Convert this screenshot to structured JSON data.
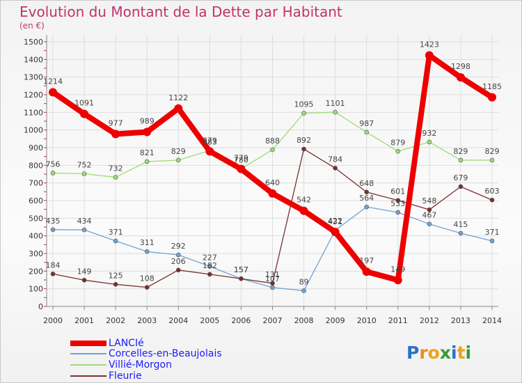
{
  "header": {
    "title": "Evolution du Montant de la Dette par Habitant",
    "subtitle": "(en €)"
  },
  "logo": {
    "text": "Proxiti",
    "letters": [
      "P",
      "r",
      "o",
      "x",
      "i",
      "t",
      "i"
    ],
    "colors": [
      "#2a6fc9",
      "#f08a1c",
      "#e9a41b",
      "#3a9a3a",
      "#2a6fc9",
      "#e9a41b",
      "#3a9a3a"
    ]
  },
  "chart_data": {
    "type": "line",
    "x": [
      "2000",
      "2001",
      "2002",
      "2003",
      "2004",
      "2005",
      "2006",
      "2007",
      "2008",
      "2009",
      "2010",
      "2011",
      "2012",
      "2013",
      "2014"
    ],
    "yticks": [
      0,
      100,
      200,
      300,
      400,
      500,
      600,
      700,
      800,
      900,
      1000,
      1100,
      1200,
      1300,
      1400,
      1500
    ],
    "ylim": [
      0,
      1500
    ],
    "grid": true,
    "legend": "bottom-left",
    "series": [
      {
        "name": "LANCIé",
        "color": "#ee0000",
        "values": [
          1214,
          1091,
          977,
          989,
          1122,
          879,
          779,
          640,
          542,
          422,
          197,
          149,
          1423,
          1298,
          1185
        ]
      },
      {
        "name": "Corcelles-en-Beaujolais",
        "color": "#6fa3d2",
        "values": [
          435,
          434,
          371,
          311,
          292,
          227,
          157,
          107,
          89,
          431,
          564,
          533,
          467,
          415,
          371
        ]
      },
      {
        "name": "Villié-Morgon",
        "color": "#9fdb77",
        "values": [
          756,
          752,
          732,
          821,
          829,
          883,
          780,
          888,
          1095,
          1101,
          987,
          879,
          932,
          829,
          829
        ]
      },
      {
        "name": "Fleurie",
        "color": "#7a2e2e",
        "values": [
          184,
          149,
          125,
          108,
          206,
          182,
          157,
          131,
          892,
          784,
          648,
          601,
          548,
          679,
          603
        ]
      }
    ]
  }
}
